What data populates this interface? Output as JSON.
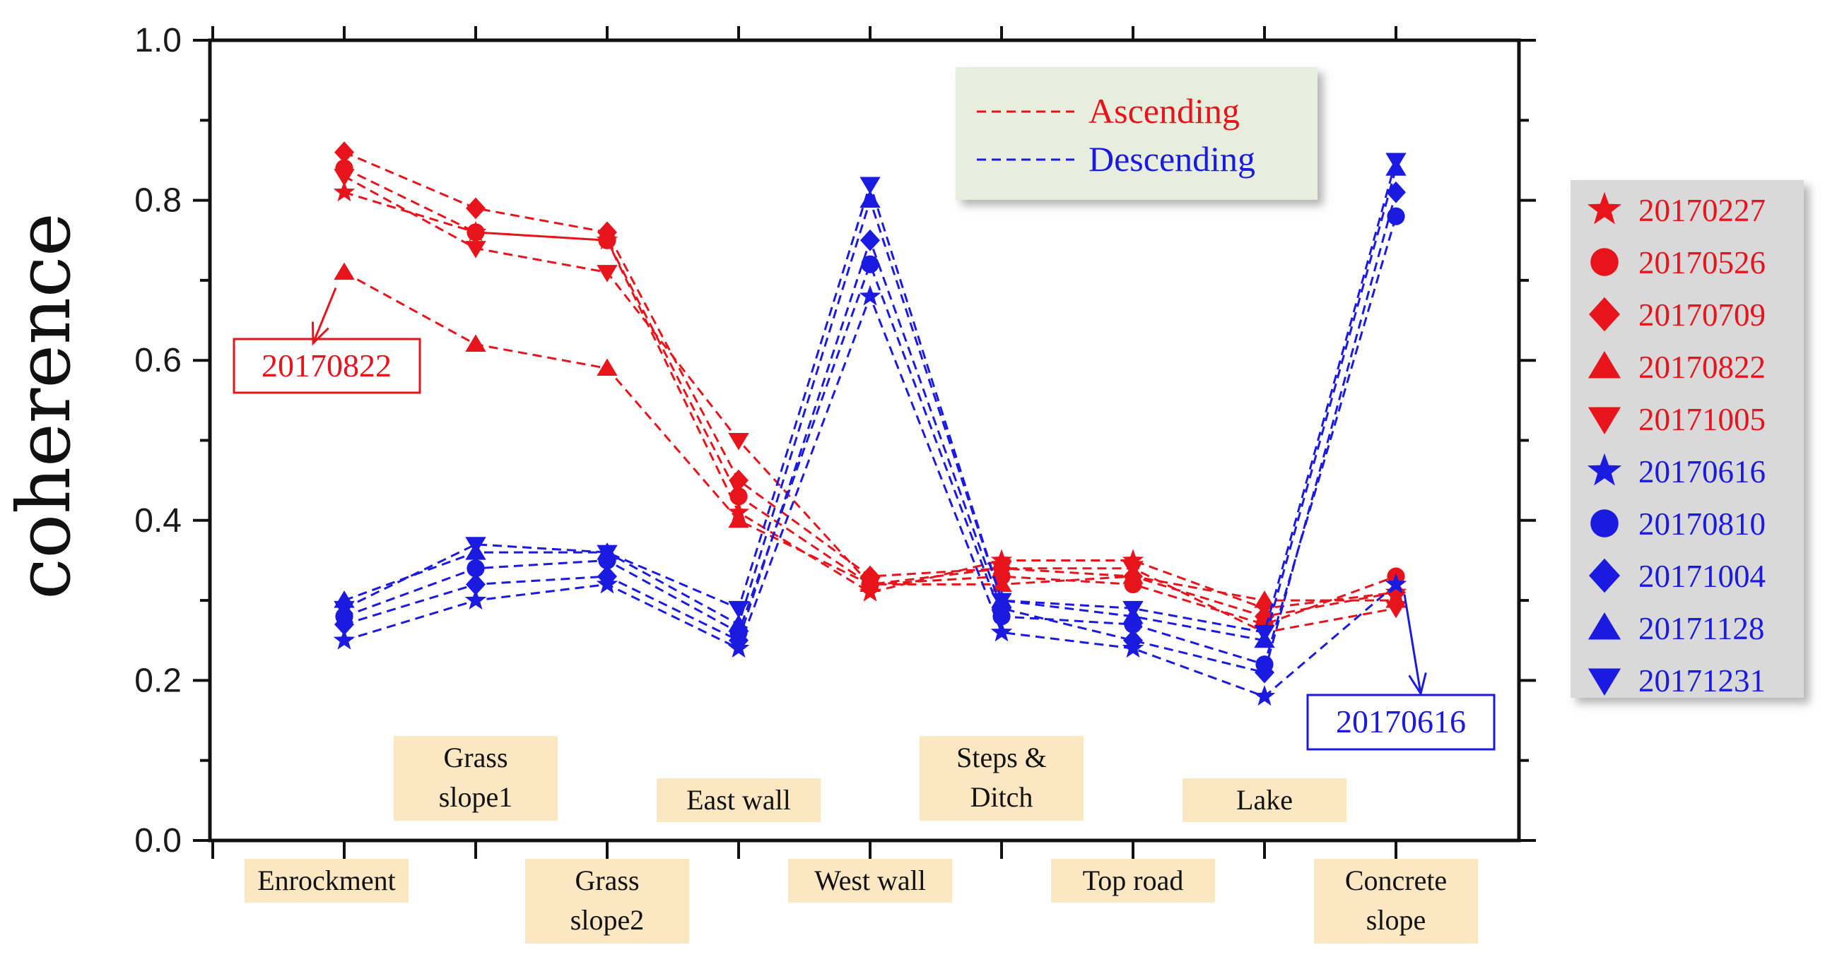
{
  "chart_data": {
    "type": "line",
    "ylabel": "coherence",
    "xlabel": "",
    "ylim": [
      0.0,
      1.0
    ],
    "yticks": [
      "0.0",
      "0.2",
      "0.4",
      "0.6",
      "0.8",
      "1.0"
    ],
    "categories": [
      "Enrockment",
      "Grass slope1",
      "Grass slope2",
      "East wall",
      "West wall",
      "Steps & Ditch",
      "Top road",
      "Lake",
      "Concrete slope"
    ],
    "category_lines": [
      [
        "Enrockment"
      ],
      [
        "Grass",
        "slope1"
      ],
      [
        "Grass",
        "slope2"
      ],
      [
        "East wall"
      ],
      [
        "West wall"
      ],
      [
        "Steps &",
        "Ditch"
      ],
      [
        "Top road"
      ],
      [
        "Lake"
      ],
      [
        "Concrete",
        "slope"
      ]
    ],
    "legend": {
      "placement": "top-center",
      "entries": [
        {
          "label": "Ascending",
          "color": "#e8141c"
        },
        {
          "label": "Descending",
          "color": "#1a1ae0"
        }
      ]
    },
    "series": [
      {
        "name": "20170227",
        "group": "Ascending",
        "marker": "star",
        "color": "#e8141c",
        "values": [
          0.81,
          0.76,
          0.75,
          0.41,
          0.31,
          0.35,
          0.35,
          0.29,
          0.31
        ]
      },
      {
        "name": "20170526",
        "group": "Ascending",
        "marker": "circle",
        "color": "#e8141c",
        "values": [
          0.84,
          0.76,
          0.75,
          0.43,
          0.32,
          0.33,
          0.32,
          0.27,
          0.33
        ]
      },
      {
        "name": "20170709",
        "group": "Ascending",
        "marker": "diamond",
        "color": "#e8141c",
        "values": [
          0.86,
          0.79,
          0.76,
          0.45,
          0.33,
          0.34,
          0.33,
          0.28,
          0.31
        ]
      },
      {
        "name": "20170822",
        "group": "Ascending",
        "marker": "triangle-up",
        "color": "#e8141c",
        "values": [
          0.71,
          0.62,
          0.59,
          0.4,
          0.32,
          0.32,
          0.33,
          0.3,
          0.3
        ]
      },
      {
        "name": "20171005",
        "group": "Ascending",
        "marker": "triangle-down",
        "color": "#e8141c",
        "values": [
          0.83,
          0.74,
          0.71,
          0.5,
          0.32,
          0.34,
          0.34,
          0.26,
          0.29
        ]
      },
      {
        "name": "20170616",
        "group": "Descending",
        "marker": "star",
        "color": "#1a1ae0",
        "values": [
          0.25,
          0.3,
          0.32,
          0.24,
          0.68,
          0.26,
          0.24,
          0.18,
          0.32
        ]
      },
      {
        "name": "20170810",
        "group": "Descending",
        "marker": "circle",
        "color": "#1a1ae0",
        "values": [
          0.28,
          0.34,
          0.35,
          0.26,
          0.72,
          0.28,
          0.27,
          0.22,
          0.78
        ]
      },
      {
        "name": "20171004",
        "group": "Descending",
        "marker": "diamond",
        "color": "#1a1ae0",
        "values": [
          0.27,
          0.32,
          0.33,
          0.25,
          0.75,
          0.29,
          0.25,
          0.21,
          0.81
        ]
      },
      {
        "name": "20171128",
        "group": "Descending",
        "marker": "triangle-up",
        "color": "#1a1ae0",
        "values": [
          0.3,
          0.36,
          0.36,
          0.27,
          0.8,
          0.3,
          0.28,
          0.25,
          0.84
        ]
      },
      {
        "name": "20171231",
        "group": "Descending",
        "marker": "triangle-down",
        "color": "#1a1ae0",
        "values": [
          0.29,
          0.37,
          0.36,
          0.29,
          0.82,
          0.3,
          0.29,
          0.26,
          0.85
        ]
      }
    ],
    "annotations": [
      {
        "text": "20170822",
        "color": "#e8141c",
        "points_to": {
          "series": "20170822",
          "category": "Enrockment"
        }
      },
      {
        "text": "20170616",
        "color": "#1a1ae0",
        "points_to": {
          "series": "20170616",
          "category": "Concrete slope"
        }
      }
    ]
  },
  "colors": {
    "ascending": "#e8141c",
    "descending": "#1a1ae0",
    "label_box": "#fbe8c2",
    "legend_box": "#e8eedd",
    "side_legend_box": "#d9d9d9"
  }
}
